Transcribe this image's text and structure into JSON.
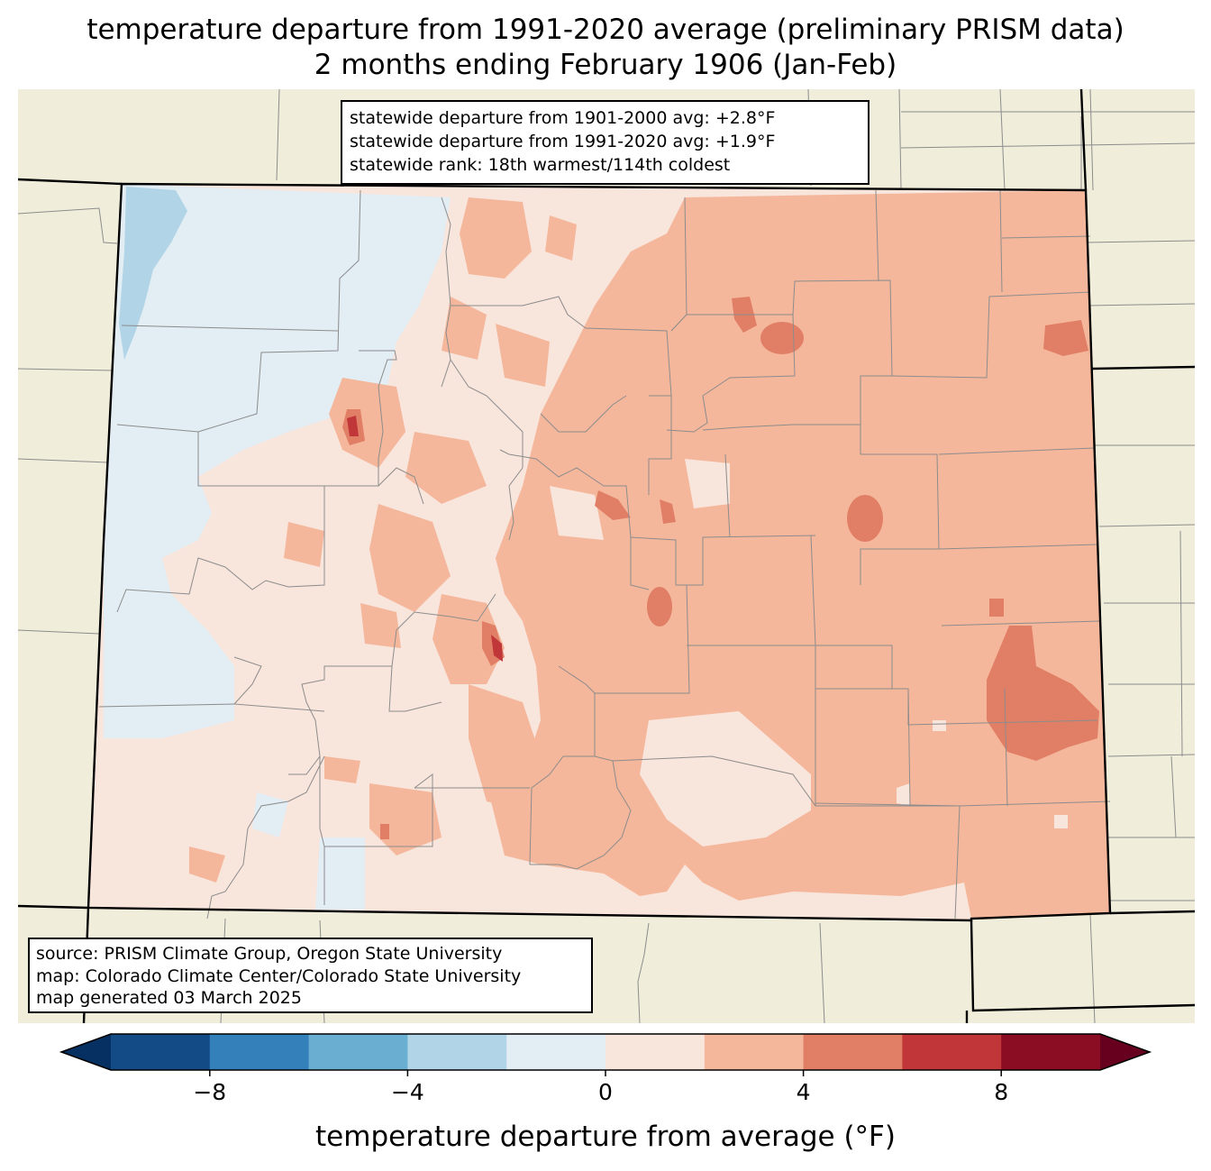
{
  "title": {
    "line1": "temperature departure from 1991-2020 average (preliminary PRISM data)",
    "line2": "2 months ending February 1906 (Jan-Feb)"
  },
  "stats": {
    "line1": "statewide departure from 1901-2000 avg: +2.8°F",
    "line2": "statewide departure from 1991-2020 avg: +1.9°F",
    "line3": "statewide rank: 18th warmest/114th coldest"
  },
  "source": {
    "line1": "source: PRISM Climate Group, Oregon State University",
    "line2": "map: Colorado Climate Center/Colorado State University",
    "line3": "map generated 03 March 2025"
  },
  "colorbar": {
    "label": "temperature departure from average (°F)",
    "ticks": [
      "−8",
      "−4",
      "0",
      "4",
      "8"
    ],
    "tick_values": [
      -8,
      -4,
      0,
      4,
      8
    ],
    "range": [
      -10,
      10
    ],
    "step": 2,
    "colors": [
      "#053061",
      "#134b87",
      "#3380ba",
      "#6aaed2",
      "#b1d5e7",
      "#e3edf4",
      "#f8e5dc",
      "#f5b79b",
      "#e17f66",
      "#c13639",
      "#8a0d24",
      "#67001f"
    ]
  },
  "map_colors": {
    "background": "#f0eedb",
    "boundary": "#000000",
    "county_lines": "#8c8c8c"
  },
  "legend_classes": [
    {
      "range": "-4 to -2 °F",
      "color": "#b1d5e7"
    },
    {
      "range": "-2 to 0 °F",
      "color": "#e3edf4"
    },
    {
      "range": "0 to 2 °F",
      "color": "#f8e5dc"
    },
    {
      "range": "2 to 4 °F",
      "color": "#f5b79b"
    },
    {
      "range": "4 to 6 °F",
      "color": "#e17f66"
    }
  ]
}
